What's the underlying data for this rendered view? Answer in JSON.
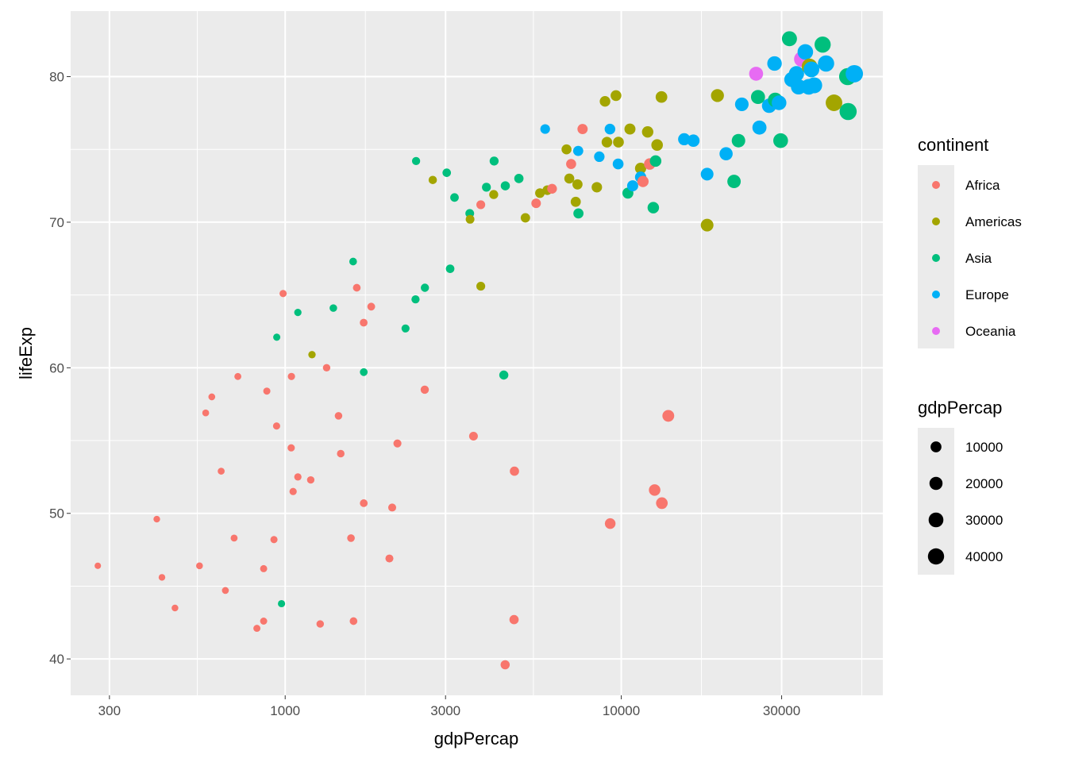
{
  "chart_data": {
    "type": "scatter",
    "xlabel": "gdpPercap",
    "ylabel": "lifeExp",
    "x_scale": "log10",
    "xlim": [
      230,
      60000
    ],
    "ylim": [
      37.5,
      84.5
    ],
    "x_ticks": [
      300,
      1000,
      3000,
      10000,
      30000
    ],
    "x_tick_labels": [
      "300",
      "1000",
      "3000",
      "10000",
      "30000"
    ],
    "y_ticks": [
      40,
      50,
      60,
      70,
      80
    ],
    "y_tick_labels": [
      "40",
      "50",
      "60",
      "70",
      "80"
    ],
    "grid": true,
    "legend_position": "right",
    "color_legend": {
      "title": "continent",
      "items": [
        {
          "label": "Africa",
          "color": "#F8766D"
        },
        {
          "label": "Americas",
          "color": "#A3A500"
        },
        {
          "label": "Asia",
          "color": "#00BF7D"
        },
        {
          "label": "Europe",
          "color": "#00B0F6"
        },
        {
          "label": "Oceania",
          "color": "#E76BF3"
        }
      ]
    },
    "size_legend": {
      "title": "gdpPercap",
      "items": [
        {
          "label": "10000",
          "value": 10000
        },
        {
          "label": "20000",
          "value": 20000
        },
        {
          "label": "30000",
          "value": 30000
        },
        {
          "label": "40000",
          "value": 40000
        }
      ]
    },
    "series": [
      {
        "continent": "Africa",
        "color": "#F8766D",
        "points": [
          [
            277,
            46.4
          ],
          [
            415,
            49.6
          ],
          [
            430,
            45.6
          ],
          [
            470,
            43.5
          ],
          [
            556,
            46.4
          ],
          [
            580,
            56.9
          ],
          [
            605,
            58.0
          ],
          [
            645,
            52.9
          ],
          [
            664,
            44.7
          ],
          [
            705,
            48.3
          ],
          [
            723,
            59.4
          ],
          [
            824,
            42.1
          ],
          [
            863,
            42.6
          ],
          [
            863,
            46.2
          ],
          [
            882,
            58.4
          ],
          [
            926,
            48.2
          ],
          [
            943,
            56.0
          ],
          [
            986,
            65.1
          ],
          [
            1042,
            54.5
          ],
          [
            1044,
            59.4
          ],
          [
            1056,
            51.5
          ],
          [
            1091,
            52.5
          ],
          [
            1191,
            52.3
          ],
          [
            1271,
            42.4
          ],
          [
            1328,
            60.0
          ],
          [
            1441,
            56.7
          ],
          [
            1463,
            54.1
          ],
          [
            1570,
            48.3
          ],
          [
            1597,
            42.6
          ],
          [
            1633,
            65.5
          ],
          [
            1713,
            50.7
          ],
          [
            1712,
            63.1
          ],
          [
            1803,
            64.2
          ],
          [
            2042,
            46.9
          ],
          [
            2082,
            50.4
          ],
          [
            2158,
            54.8
          ],
          [
            2602,
            58.5
          ],
          [
            3632,
            55.3
          ],
          [
            3820,
            71.2
          ],
          [
            4513,
            39.6
          ],
          [
            4797,
            42.7
          ],
          [
            4811,
            52.9
          ],
          [
            5581,
            71.3
          ],
          [
            6223,
            72.3
          ],
          [
            7093,
            74.0
          ],
          [
            7670,
            76.4
          ],
          [
            9270,
            49.3
          ],
          [
            11605,
            72.8
          ],
          [
            12155,
            74.0
          ],
          [
            12570,
            51.6
          ],
          [
            13206,
            50.7
          ],
          [
            13800,
            56.7
          ]
        ]
      },
      {
        "continent": "Americas",
        "color": "#A3A500",
        "points": [
          [
            1202,
            60.9
          ],
          [
            2749,
            72.9
          ],
          [
            3548,
            70.2
          ],
          [
            3820,
            65.6
          ],
          [
            4173,
            71.9
          ],
          [
            5186,
            70.3
          ],
          [
            5728,
            72.0
          ],
          [
            6025,
            72.2
          ],
          [
            6873,
            75.0
          ],
          [
            7006,
            73.0
          ],
          [
            7321,
            71.4
          ],
          [
            7409,
            72.6
          ],
          [
            8458,
            72.4
          ],
          [
            8948,
            78.3
          ],
          [
            9066,
            75.5
          ],
          [
            9645,
            78.7
          ],
          [
            9810,
            75.5
          ],
          [
            10611,
            76.4
          ],
          [
            11416,
            73.7
          ],
          [
            11978,
            76.2
          ],
          [
            12779,
            75.3
          ],
          [
            13172,
            78.6
          ],
          [
            18009,
            69.8
          ],
          [
            19328,
            78.7
          ],
          [
            36319,
            80.7
          ],
          [
            42952,
            78.2
          ]
        ]
      },
      {
        "continent": "Asia",
        "color": "#00BF7D",
        "points": [
          [
            944,
            62.1
          ],
          [
            975,
            43.8
          ],
          [
            1091,
            63.8
          ],
          [
            1391,
            64.1
          ],
          [
            1593,
            67.3
          ],
          [
            1713,
            59.7
          ],
          [
            2281,
            62.7
          ],
          [
            2452,
            74.2
          ],
          [
            2442,
            64.7
          ],
          [
            2605,
            65.5
          ],
          [
            3025,
            73.4
          ],
          [
            3096,
            66.8
          ],
          [
            3190,
            71.7
          ],
          [
            3541,
            70.6
          ],
          [
            3970,
            72.4
          ],
          [
            4185,
            74.2
          ],
          [
            4471,
            59.5
          ],
          [
            4519,
            72.5
          ],
          [
            4959,
            73.0
          ],
          [
            7458,
            70.6
          ],
          [
            10461,
            72.0
          ],
          [
            12452,
            71.0
          ],
          [
            12650,
            74.2
          ],
          [
            21655,
            72.8
          ],
          [
            22316,
            75.6
          ],
          [
            25523,
            78.6
          ],
          [
            28718,
            78.4
          ],
          [
            29796,
            75.6
          ],
          [
            31656,
            82.6
          ],
          [
            39725,
            82.2
          ],
          [
            47143,
            80.0
          ],
          [
            47307,
            77.6
          ]
        ]
      },
      {
        "continent": "Europe",
        "color": "#00B0F6",
        "points": [
          [
            5937,
            76.4
          ],
          [
            7446,
            74.9
          ],
          [
            8605,
            74.5
          ],
          [
            9254,
            76.4
          ],
          [
            9787,
            74.0
          ],
          [
            10808,
            72.5
          ],
          [
            11416,
            73.1
          ],
          [
            15390,
            75.7
          ],
          [
            16392,
            75.6
          ],
          [
            18009,
            73.3
          ],
          [
            20510,
            74.7
          ],
          [
            22833,
            78.1
          ],
          [
            25768,
            76.5
          ],
          [
            27538,
            78.0
          ],
          [
            28570,
            80.9
          ],
          [
            29480,
            78.2
          ],
          [
            32170,
            79.8
          ],
          [
            33207,
            80.2
          ],
          [
            33692,
            79.3
          ],
          [
            35278,
            81.7
          ],
          [
            36126,
            79.3
          ],
          [
            36798,
            80.5
          ],
          [
            37506,
            79.4
          ],
          [
            40676,
            80.9
          ],
          [
            49357,
            80.2
          ]
        ]
      },
      {
        "continent": "Oceania",
        "color": "#E76BF3",
        "points": [
          [
            25185,
            80.2
          ],
          [
            34435,
            81.2
          ]
        ]
      }
    ]
  }
}
